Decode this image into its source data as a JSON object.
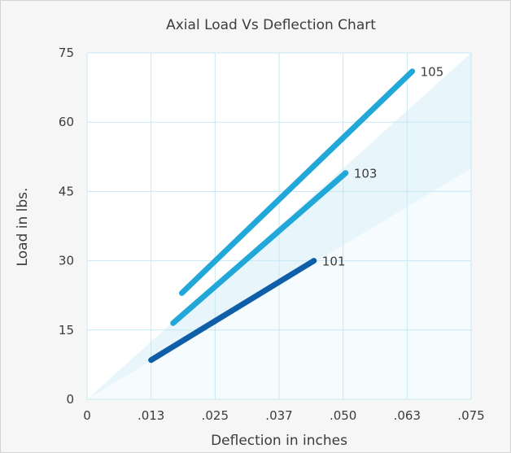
{
  "chart_data": {
    "type": "line",
    "title": "Axial Load Vs Deflection Chart",
    "xlabel": "Deflection in inches",
    "ylabel": "Load in lbs.",
    "x_ticks": [
      "0",
      ".013",
      ".025",
      ".037",
      ".050",
      ".063",
      ".075"
    ],
    "y_ticks": [
      "0",
      "15",
      "30",
      "45",
      "60",
      "75"
    ],
    "xlim": [
      0,
      0.075
    ],
    "ylim": [
      0,
      75
    ],
    "grid": true,
    "series": [
      {
        "name": "105",
        "color": "#21a8d8",
        "x": [
          0.0185,
          0.0635
        ],
        "y": [
          23,
          71
        ]
      },
      {
        "name": "103",
        "color": "#21a8d8",
        "x": [
          0.0168,
          0.0505
        ],
        "y": [
          16.5,
          49
        ]
      },
      {
        "name": "101",
        "color": "#0e5ea8",
        "x": [
          0.0125,
          0.0443
        ],
        "y": [
          8.5,
          30
        ]
      }
    ],
    "colors": {
      "background": "#f6f6f6",
      "plot_area": "#ffffff",
      "grid": "#c6e8f4",
      "wedge": "#d6eef8"
    }
  }
}
